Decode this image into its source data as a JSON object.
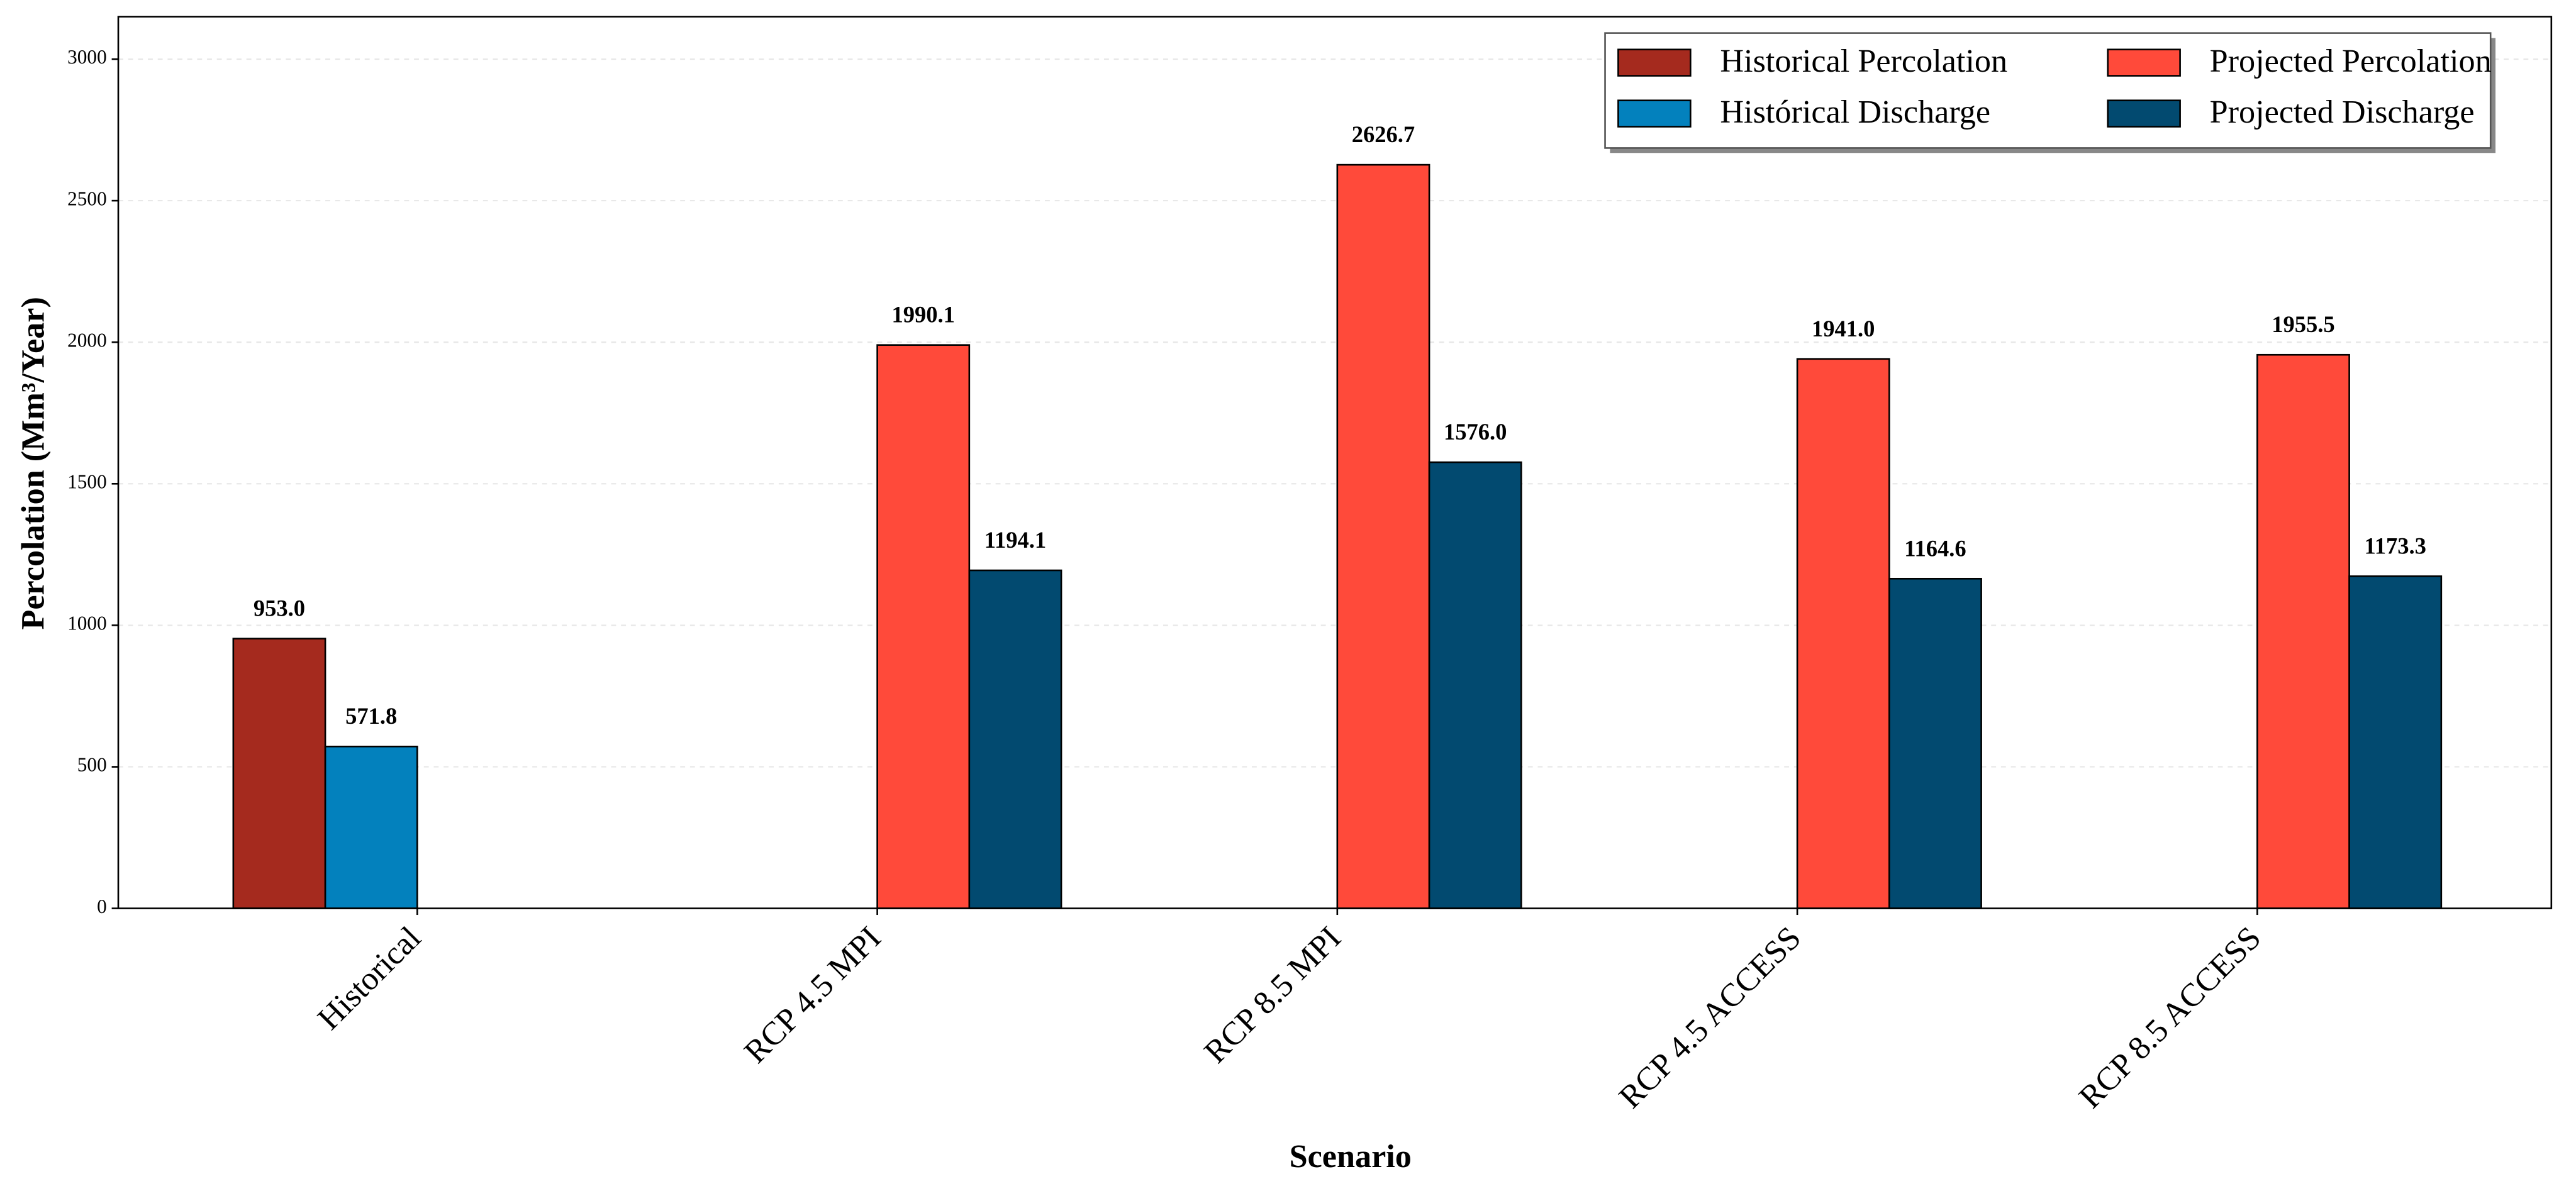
{
  "chart_data": {
    "type": "bar",
    "x_label": "Scenario",
    "y_label": "Percolation (Mm³/Year)",
    "categories": [
      "Historical",
      "RCP 4.5 MPI",
      "RCP 8.5 MPI",
      "RCP 4.5 ACCESS",
      "RCP 8.5 ACCESS"
    ],
    "series": [
      {
        "name": "Historical Percolation",
        "color": "#a52a1e",
        "values": [
          953.0,
          0,
          0,
          0,
          0
        ],
        "value_labels": [
          "953.0",
          null,
          null,
          null,
          null
        ]
      },
      {
        "name": "Histórical Discharge",
        "color": "#0381bd",
        "values": [
          571.8,
          0,
          0,
          0,
          0
        ],
        "value_labels": [
          "571.8",
          null,
          null,
          null,
          null
        ]
      },
      {
        "name": "Projected Percolation",
        "color": "#ff4a3a",
        "values": [
          0,
          1990.1,
          2626.7,
          1941.0,
          1955.5
        ],
        "value_labels": [
          null,
          "1990.1",
          "2626.7",
          "1941.0",
          "1955.5"
        ]
      },
      {
        "name": "Projected Discharge",
        "color": "#024a70",
        "values": [
          0,
          1194.1,
          1576.0,
          1164.6,
          1173.3
        ],
        "value_labels": [
          null,
          "1194.1",
          "1576.0",
          "1164.6",
          "1173.3"
        ]
      }
    ],
    "ylim": [
      0,
      3150
    ],
    "yticks": [
      0,
      500,
      1000,
      1500,
      2000,
      2500,
      3000
    ],
    "grid": true,
    "legend": "upper right"
  }
}
